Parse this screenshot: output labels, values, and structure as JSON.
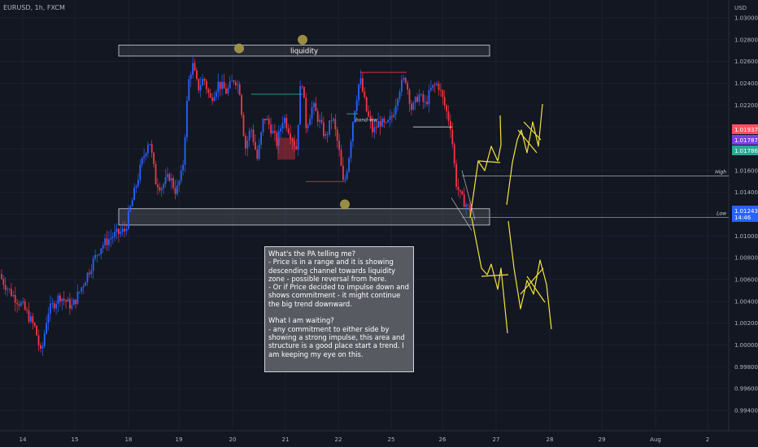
{
  "header": {
    "symbol_line": "EURUSD, 1h, FXCM"
  },
  "chart_data": {
    "type": "candlestick",
    "symbol": "EURUSD",
    "timeframe": "1h",
    "broker": "FXCM",
    "currency_label": "USD",
    "ylim": [
      0.9925,
      1.031
    ],
    "y_ticks": [
      "1.03000",
      "1.02800",
      "1.02600",
      "1.02400",
      "1.02200",
      "1.02000",
      "1.01800",
      "1.01600",
      "1.01400",
      "1.01200",
      "1.01000",
      "1.00800",
      "1.00600",
      "1.00400",
      "1.00200",
      "1.00000",
      "0.99800",
      "0.99600",
      "0.99400"
    ],
    "x_ticks": [
      "14",
      "15",
      "18",
      "19",
      "20",
      "21",
      "22",
      "25",
      "26",
      "27",
      "28",
      "29",
      "Aug",
      "2"
    ],
    "price_badges": [
      {
        "label": "1.01937",
        "price": 1.01937,
        "color": "#f7525f"
      },
      {
        "label": "1.01787",
        "price": 1.01787,
        "color": "#7b3fe4"
      },
      {
        "label": "1.01786",
        "price": 1.01786,
        "color": "#22ab94"
      },
      {
        "label": "1.01243",
        "label2": "14:46",
        "price": 1.01243,
        "color": "#2962ff"
      }
    ],
    "zones": [
      {
        "name": "liquidity",
        "label": "liquidity",
        "top": 1.0275,
        "bottom": 1.0265
      },
      {
        "name": "support",
        "label": "",
        "top": 1.0125,
        "bottom": 1.011
      }
    ],
    "levels": [
      {
        "label": "High",
        "price": 1.0155
      },
      {
        "label": "Low",
        "price": 1.0117
      }
    ],
    "bos_label": "bond-ww",
    "candle_color_up": "#2962ff",
    "candle_color_down": "#f23645"
  },
  "note": {
    "text": "What's the PA telling me?\n- Price is in a range and it is showing descending channel towards liquidity zone - possible reversal from here.\n- Or if Price decided to impulse down and shows commitment - it might continue the big trend downward.\n\nWhat I am waiting?\n- any commitment to either side by showing a strong impulse, this area and structure is a good place start a trend. I am keeping my eye on this."
  }
}
